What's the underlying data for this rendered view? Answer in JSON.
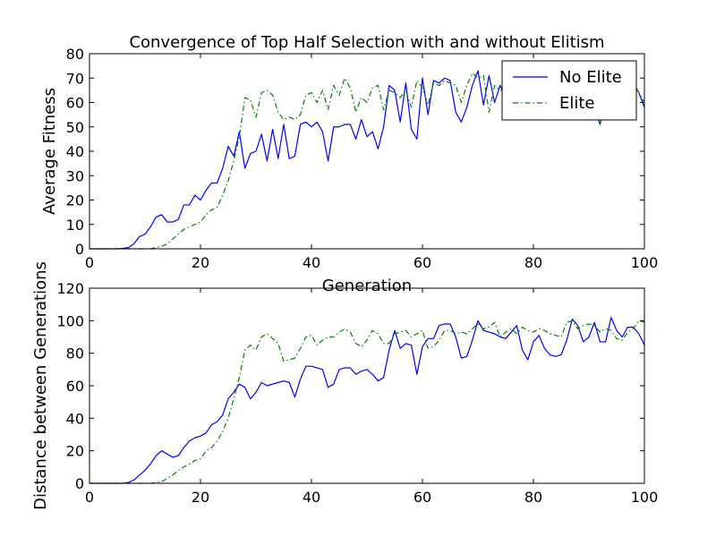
{
  "chart_data": [
    {
      "type": "line",
      "title": "Convergence of Top Half Selection with and without Elitism",
      "xlabel": "Generation",
      "ylabel": "Average Fitness",
      "xlim": [
        0,
        100
      ],
      "ylim": [
        0,
        80
      ],
      "xticks": [
        0,
        20,
        40,
        60,
        80,
        100
      ],
      "yticks": [
        0,
        10,
        20,
        30,
        40,
        50,
        60,
        70,
        80
      ],
      "grid": false,
      "legend": "top-right",
      "series": [
        {
          "name": "No Elite",
          "color": "#0000ff",
          "style": "solid",
          "x": [
            0,
            1,
            2,
            3,
            4,
            5,
            6,
            7,
            8,
            9,
            10,
            11,
            12,
            13,
            14,
            15,
            16,
            17,
            18,
            19,
            20,
            21,
            22,
            23,
            24,
            25,
            26,
            27,
            28,
            29,
            30,
            31,
            32,
            33,
            34,
            35,
            36,
            37,
            38,
            39,
            40,
            41,
            42,
            43,
            44,
            45,
            46,
            47,
            48,
            49,
            50,
            51,
            52,
            53,
            54,
            55,
            56,
            57,
            58,
            59,
            60,
            61,
            62,
            63,
            64,
            65,
            66,
            67,
            68,
            69,
            70,
            71,
            72,
            73,
            74,
            75,
            76,
            77,
            78,
            79,
            80,
            81,
            82,
            83,
            84,
            85,
            86,
            87,
            88,
            89,
            90,
            91,
            92,
            93,
            94,
            95,
            96,
            97,
            98,
            99,
            100
          ],
          "values": [
            0,
            0,
            0,
            0,
            0,
            0,
            0.2,
            0.5,
            2,
            5,
            6,
            9,
            13,
            14,
            11,
            11,
            12,
            18,
            18,
            22,
            20,
            24,
            27,
            27,
            33,
            42,
            38,
            48,
            33,
            39,
            40,
            47,
            36,
            49,
            37,
            51,
            37,
            38,
            51,
            52,
            50,
            52,
            48,
            36,
            50,
            50,
            51,
            51,
            45,
            53,
            46,
            48,
            41,
            50,
            67,
            65,
            52,
            68,
            49,
            45,
            70,
            55,
            69,
            68,
            70,
            69,
            56,
            52,
            58,
            67,
            73,
            59,
            71,
            60,
            67,
            62,
            67,
            66,
            64,
            61,
            63,
            57,
            56,
            53,
            60,
            58,
            59,
            61,
            62,
            60,
            62,
            58,
            51,
            60,
            61,
            63,
            64,
            65,
            68,
            64,
            58
          ]
        },
        {
          "name": "Elite",
          "color": "#008000",
          "style": "dashdot",
          "x": [
            0,
            1,
            2,
            3,
            4,
            5,
            6,
            7,
            8,
            9,
            10,
            11,
            12,
            13,
            14,
            15,
            16,
            17,
            18,
            19,
            20,
            21,
            22,
            23,
            24,
            25,
            26,
            27,
            28,
            29,
            30,
            31,
            32,
            33,
            34,
            35,
            36,
            37,
            38,
            39,
            40,
            41,
            42,
            43,
            44,
            45,
            46,
            47,
            48,
            49,
            50,
            51,
            52,
            53,
            54,
            55,
            56,
            57,
            58,
            59,
            60,
            61,
            62,
            63,
            64,
            65,
            66,
            67,
            68,
            69,
            70,
            71,
            72,
            73,
            74,
            75,
            76,
            77,
            78,
            79,
            80,
            81,
            82,
            83,
            84,
            85,
            86,
            87,
            88,
            89,
            90,
            91,
            92,
            93,
            94,
            95,
            96,
            97,
            98,
            99,
            100
          ],
          "values": [
            0,
            0,
            0,
            0,
            0,
            0,
            0,
            0,
            0,
            0,
            0,
            0,
            0.5,
            1,
            2,
            4,
            6,
            8,
            9,
            10,
            11,
            14,
            16,
            17,
            22,
            28,
            36,
            46,
            62,
            61,
            54,
            64,
            65,
            63,
            56,
            53,
            54,
            53,
            55,
            63,
            64,
            60,
            65,
            57,
            67,
            63,
            70,
            66,
            56,
            62,
            60,
            66,
            67,
            57,
            65,
            64,
            62,
            65,
            58,
            69,
            66,
            59,
            68,
            67,
            69,
            68,
            67,
            60,
            67,
            72,
            70,
            71,
            56,
            67,
            65,
            65,
            68,
            66,
            64,
            61,
            63,
            57,
            56,
            53,
            60,
            58,
            59,
            61,
            62,
            60,
            62,
            58,
            51,
            60,
            61,
            63,
            64,
            65,
            68,
            64,
            60
          ]
        }
      ]
    },
    {
      "type": "line",
      "title": "",
      "xlabel": "",
      "ylabel": "Distance between Generations",
      "xlim": [
        0,
        100
      ],
      "ylim": [
        0,
        120
      ],
      "xticks": [
        0,
        20,
        40,
        60,
        80,
        100
      ],
      "yticks": [
        0,
        20,
        40,
        60,
        80,
        100,
        120
      ],
      "grid": false,
      "series": [
        {
          "name": "No Elite",
          "color": "#0000ff",
          "style": "solid",
          "x": [
            0,
            1,
            2,
            3,
            4,
            5,
            6,
            7,
            8,
            9,
            10,
            11,
            12,
            13,
            14,
            15,
            16,
            17,
            18,
            19,
            20,
            21,
            22,
            23,
            24,
            25,
            26,
            27,
            28,
            29,
            30,
            31,
            32,
            33,
            34,
            35,
            36,
            37,
            38,
            39,
            40,
            41,
            42,
            43,
            44,
            45,
            46,
            47,
            48,
            49,
            50,
            51,
            52,
            53,
            54,
            55,
            56,
            57,
            58,
            59,
            60,
            61,
            62,
            63,
            64,
            65,
            66,
            67,
            68,
            69,
            70,
            71,
            72,
            73,
            74,
            75,
            76,
            77,
            78,
            79,
            80,
            81,
            82,
            83,
            84,
            85,
            86,
            87,
            88,
            89,
            90,
            91,
            92,
            93,
            94,
            95,
            96,
            97,
            98,
            99,
            100
          ],
          "values": [
            0,
            0,
            0,
            0,
            0,
            0,
            0,
            0.5,
            2,
            5,
            8,
            12,
            17,
            20,
            18,
            16,
            17,
            22,
            26,
            28,
            29,
            31,
            36,
            38,
            42,
            52,
            56,
            61,
            59,
            52,
            56,
            62,
            60,
            61,
            62,
            63,
            62,
            53,
            64,
            72,
            72,
            71,
            70,
            59,
            61,
            70,
            71,
            71,
            67,
            69,
            70,
            67,
            63,
            65,
            82,
            94,
            83,
            86,
            85,
            67,
            84,
            89,
            89,
            97,
            98,
            98,
            90,
            77,
            78,
            88,
            100,
            94,
            93,
            92,
            90,
            89,
            93,
            97,
            82,
            76,
            87,
            91,
            83,
            79,
            78,
            79,
            88,
            101,
            97,
            87,
            90,
            99,
            87,
            87,
            102,
            94,
            90,
            96,
            96,
            92,
            85
          ]
        },
        {
          "name": "Elite",
          "color": "#008000",
          "style": "dashdot",
          "x": [
            0,
            1,
            2,
            3,
            4,
            5,
            6,
            7,
            8,
            9,
            10,
            11,
            12,
            13,
            14,
            15,
            16,
            17,
            18,
            19,
            20,
            21,
            22,
            23,
            24,
            25,
            26,
            27,
            28,
            29,
            30,
            31,
            32,
            33,
            34,
            35,
            36,
            37,
            38,
            39,
            40,
            41,
            42,
            43,
            44,
            45,
            46,
            47,
            48,
            49,
            50,
            51,
            52,
            53,
            54,
            55,
            56,
            57,
            58,
            59,
            60,
            61,
            62,
            63,
            64,
            65,
            66,
            67,
            68,
            69,
            70,
            71,
            72,
            73,
            74,
            75,
            76,
            77,
            78,
            79,
            80,
            81,
            82,
            83,
            84,
            85,
            86,
            87,
            88,
            89,
            90,
            91,
            92,
            93,
            94,
            95,
            96,
            97,
            98,
            99,
            100
          ],
          "values": [
            0,
            0,
            0,
            0,
            0,
            0,
            0,
            0,
            0,
            0,
            0,
            0,
            0.5,
            1,
            3,
            5,
            8,
            10,
            12,
            14,
            15,
            20,
            22,
            26,
            32,
            40,
            52,
            65,
            82,
            85,
            82,
            90,
            92,
            89,
            86,
            75,
            76,
            77,
            83,
            90,
            91,
            85,
            88,
            90,
            90,
            93,
            95,
            93,
            86,
            84,
            88,
            94,
            92,
            86,
            86,
            92,
            93,
            94,
            90,
            92,
            94,
            83,
            84,
            88,
            94,
            94,
            92,
            93,
            92,
            95,
            98,
            95,
            96,
            99,
            90,
            93,
            95,
            92,
            96,
            94,
            93,
            95,
            94,
            92,
            91,
            90,
            99,
            100,
            95,
            97,
            98,
            97,
            93,
            95,
            94,
            89,
            88,
            93,
            95,
            100,
            99
          ]
        }
      ]
    }
  ]
}
